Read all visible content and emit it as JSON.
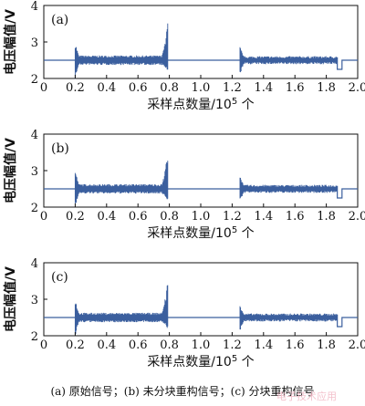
{
  "colors": {
    "signal": "#3b5f9e",
    "axis": "#111111",
    "watermark": "#f2b7c4"
  },
  "chart_data": [
    {
      "panel_label": "(a)",
      "type": "line",
      "xlabel": "采样点数量/10^5 个",
      "ylabel": "电压幅值/V",
      "xlim": [
        0,
        2.0
      ],
      "ylim": [
        2,
        4
      ],
      "xticks": [
        "0",
        "0.2",
        "0.4",
        "0.6",
        "0.8",
        "1.0",
        "1.2",
        "1.4",
        "1.6",
        "1.8",
        "2.0"
      ],
      "yticks": [
        "2",
        "3",
        "4"
      ],
      "baseline": 2.5,
      "bursts": [
        {
          "x_start": 0.2,
          "x_end": 0.79,
          "upper_envelope": 2.6,
          "lower_envelope": 2.4,
          "onset_peak_max": 3.02,
          "onset_peak_min": 1.98,
          "end_peak_max": 3.55,
          "end_peak_min": 2.18
        },
        {
          "x_start": 1.25,
          "x_end": 1.87,
          "upper_envelope": 2.58,
          "lower_envelope": 2.42,
          "onset_peak_max": 2.88,
          "onset_peak_min": 2.1,
          "step_low": 2.25,
          "step_end": 1.9
        }
      ]
    },
    {
      "panel_label": "(b)",
      "type": "line",
      "xlabel": "采样点数量/10^5 个",
      "ylabel": "电压幅值/V",
      "xlim": [
        0,
        2.0
      ],
      "ylim": [
        2,
        4
      ],
      "xticks": [
        "0",
        "0.2",
        "0.4",
        "0.6",
        "0.8",
        "1.0",
        "1.2",
        "1.4",
        "1.6",
        "1.8",
        "2.0"
      ],
      "yticks": [
        "2",
        "3",
        "4"
      ],
      "baseline": 2.5,
      "bursts": [
        {
          "x_start": 0.2,
          "x_end": 0.79,
          "upper_envelope": 2.6,
          "lower_envelope": 2.4,
          "onset_peak_max": 3.02,
          "onset_peak_min": 1.98,
          "end_peak_max": 3.55,
          "end_peak_min": 2.18
        },
        {
          "x_start": 1.25,
          "x_end": 1.87,
          "upper_envelope": 2.58,
          "lower_envelope": 2.42,
          "onset_peak_max": 2.88,
          "onset_peak_min": 2.1,
          "step_low": 2.25,
          "step_end": 1.9
        }
      ]
    },
    {
      "panel_label": "(c)",
      "type": "line",
      "xlabel": "采样点数量/10^5 个",
      "ylabel": "电压幅值/V",
      "xlim": [
        0,
        2.0
      ],
      "ylim": [
        2,
        4
      ],
      "xticks": [
        "0",
        "0.2",
        "0.4",
        "0.6",
        "0.8",
        "1.0",
        "1.2",
        "1.4",
        "1.6",
        "1.8",
        "2.0"
      ],
      "yticks": [
        "2",
        "3",
        "4"
      ],
      "baseline": 2.5,
      "bursts": [
        {
          "x_start": 0.2,
          "x_end": 0.79,
          "upper_envelope": 2.6,
          "lower_envelope": 2.4,
          "onset_peak_max": 3.02,
          "onset_peak_min": 1.98,
          "end_peak_max": 3.55,
          "end_peak_min": 2.18
        },
        {
          "x_start": 1.25,
          "x_end": 1.87,
          "upper_envelope": 2.58,
          "lower_envelope": 2.42,
          "onset_peak_max": 2.88,
          "onset_peak_min": 2.1,
          "step_low": 2.25,
          "step_end": 1.9
        }
      ]
    }
  ],
  "caption": "(a) 原始信号；(b) 未分块重构信号；(c) 分块重构信号",
  "watermark": "电子技术应用"
}
